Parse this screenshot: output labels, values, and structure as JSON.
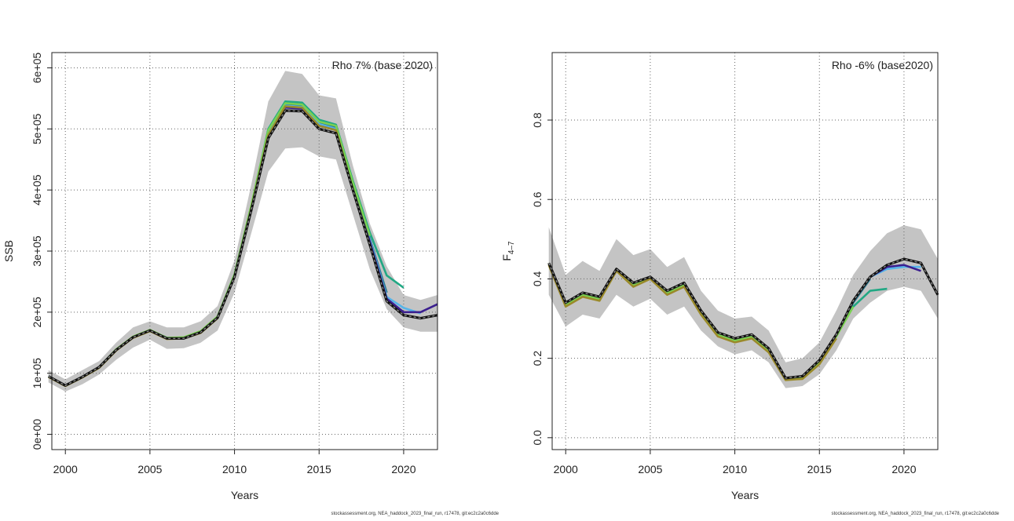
{
  "chart_data": [
    {
      "type": "line",
      "xlabel": "Years",
      "ylabel": "SSB",
      "retro_label": "Rho 7% (base 2020)",
      "footer": "stockassessment.org, NEA_haddock_2023_final_run, r17478, git:ec2c2a0c6dde",
      "xlim": [
        1999.2,
        2022
      ],
      "ylim": [
        -25000,
        625000
      ],
      "x_ticks": [
        2000,
        2005,
        2010,
        2015,
        2020
      ],
      "x_tick_labels": [
        "2000",
        "2005",
        "2010",
        "2015",
        "2020"
      ],
      "y_ticks": [
        0,
        100000,
        200000,
        300000,
        400000,
        500000,
        600000
      ],
      "y_tick_labels": [
        "0e+00",
        "1e+05",
        "2e+05",
        "3e+05",
        "4e+05",
        "5e+05",
        "6e+05"
      ],
      "grid": true,
      "band": {
        "x": [
          1999,
          2000,
          2001,
          2002,
          2003,
          2004,
          2005,
          2006,
          2007,
          2008,
          2009,
          2010,
          2011,
          2012,
          2013,
          2014,
          2015,
          2016,
          2017,
          2018,
          2019,
          2020,
          2021,
          2022
        ],
        "lower": [
          85000,
          70000,
          82000,
          98000,
          122000,
          142000,
          155000,
          140000,
          141000,
          150000,
          170000,
          232000,
          330000,
          430000,
          468000,
          470000,
          455000,
          450000,
          360000,
          270000,
          205000,
          175000,
          168000,
          168000
        ],
        "upper": [
          105000,
          90000,
          105000,
          120000,
          150000,
          175000,
          185000,
          175000,
          175000,
          185000,
          210000,
          285000,
          410000,
          545000,
          595000,
          590000,
          555000,
          550000,
          440000,
          345000,
          275000,
          228000,
          220000,
          228000
        ]
      },
      "series": [
        {
          "color": "#22a884",
          "x": [
            1999,
            2000,
            2001,
            2002,
            2003,
            2004,
            2005,
            2006,
            2007,
            2008,
            2009,
            2010,
            2011,
            2012,
            2013,
            2014,
            2015,
            2016,
            2017,
            2018,
            2019,
            2020
          ],
          "y": [
            95000,
            80000,
            94000,
            110000,
            138000,
            159000,
            170000,
            158000,
            158000,
            168000,
            192000,
            262000,
            375000,
            500000,
            545000,
            543000,
            515000,
            507000,
            415000,
            330000,
            260000,
            240000
          ]
        },
        {
          "color": "#2a788e",
          "x": [
            1999,
            2000,
            2001,
            2002,
            2003,
            2004,
            2005,
            2006,
            2007,
            2008,
            2009,
            2010,
            2011,
            2012,
            2013,
            2014,
            2015,
            2016,
            2017,
            2018,
            2019
          ],
          "y": [
            95000,
            80000,
            94000,
            110000,
            138000,
            159000,
            170000,
            157000,
            157000,
            167000,
            191000,
            260000,
            372000,
            495000,
            540000,
            538000,
            510000,
            502000,
            410000,
            320000,
            232000
          ]
        },
        {
          "color": "#56b4e9",
          "x": [
            1999,
            2000,
            2001,
            2002,
            2003,
            2004,
            2005,
            2006,
            2007,
            2008,
            2009,
            2010,
            2011,
            2012,
            2013,
            2014,
            2015,
            2016,
            2017,
            2018,
            2019,
            2020,
            2021
          ],
          "y": [
            95000,
            80000,
            94000,
            110000,
            138000,
            159000,
            170000,
            157000,
            157000,
            167000,
            191000,
            260000,
            372000,
            492000,
            538000,
            536000,
            508000,
            500000,
            407000,
            318000,
            225000,
            207000,
            198000
          ]
        },
        {
          "color": "#3b1f8f",
          "x": [
            1999,
            2000,
            2001,
            2002,
            2003,
            2004,
            2005,
            2006,
            2007,
            2008,
            2009,
            2010,
            2011,
            2012,
            2013,
            2014,
            2015,
            2016,
            2017,
            2018,
            2019,
            2020,
            2021,
            2022
          ],
          "y": [
            95000,
            80000,
            94000,
            110000,
            138000,
            159000,
            170000,
            157000,
            157000,
            167000,
            191000,
            260000,
            371000,
            490000,
            535000,
            533000,
            505000,
            498000,
            405000,
            315000,
            222000,
            200000,
            200000,
            213000
          ]
        },
        {
          "color": "#7ad151",
          "x": [
            1999,
            2000,
            2001,
            2002,
            2003,
            2004,
            2005,
            2006,
            2007,
            2008,
            2009,
            2010,
            2011,
            2012,
            2013,
            2014,
            2015,
            2016,
            2017,
            2018
          ],
          "y": [
            95000,
            80000,
            94000,
            110000,
            139000,
            160000,
            171000,
            158000,
            159000,
            169000,
            193000,
            262000,
            376000,
            498000,
            542000,
            540000,
            512000,
            505000,
            412000,
            325000
          ]
        },
        {
          "color": "#9a8a2a",
          "x": [
            1999,
            2000,
            2001,
            2002,
            2003,
            2004,
            2005,
            2006,
            2007,
            2008,
            2009,
            2010,
            2011,
            2012,
            2013,
            2014,
            2015,
            2016,
            2017
          ],
          "y": [
            94000,
            79000,
            93000,
            109000,
            137000,
            158000,
            169000,
            156000,
            157000,
            166000,
            190000,
            258000,
            370000,
            490000,
            537000,
            535000,
            505000,
            498000,
            400000
          ]
        },
        {
          "color": "#111111",
          "dashed": true,
          "x": [
            1999,
            2000,
            2001,
            2002,
            2003,
            2004,
            2005,
            2006,
            2007,
            2008,
            2009,
            2010,
            2011,
            2012,
            2013,
            2014,
            2015,
            2016,
            2017,
            2018,
            2019,
            2020,
            2021,
            2022
          ],
          "y": [
            95000,
            80000,
            94000,
            110000,
            138000,
            159000,
            170000,
            157000,
            157000,
            167000,
            191000,
            258000,
            368000,
            485000,
            530000,
            529000,
            500000,
            493000,
            400000,
            310000,
            218000,
            195000,
            190000,
            195000
          ]
        }
      ]
    },
    {
      "type": "line",
      "xlabel": "Years",
      "ylabel": "F",
      "ylabel_sub": "4–7",
      "retro_label": "Rho -6% (base2020)",
      "footer": "stockassessment.org, NEA_haddock_2023_final_run, r17478, git:ec2c2a0c6dde",
      "xlim": [
        1999.2,
        2022
      ],
      "ylim": [
        -0.03,
        0.97
      ],
      "x_ticks": [
        2000,
        2005,
        2010,
        2015,
        2020
      ],
      "x_tick_labels": [
        "2000",
        "2005",
        "2010",
        "2015",
        "2020"
      ],
      "y_ticks": [
        0.0,
        0.2,
        0.4,
        0.6,
        0.8
      ],
      "y_tick_labels": [
        "0.0",
        "0.2",
        "0.4",
        "0.6",
        "0.8"
      ],
      "grid": true,
      "band": {
        "x": [
          1999,
          2000,
          2001,
          2002,
          2003,
          2004,
          2005,
          2006,
          2007,
          2008,
          2009,
          2010,
          2011,
          2012,
          2013,
          2014,
          2015,
          2016,
          2017,
          2018,
          2019,
          2020,
          2021,
          2022
        ],
        "lower": [
          0.36,
          0.28,
          0.31,
          0.3,
          0.36,
          0.33,
          0.35,
          0.31,
          0.33,
          0.27,
          0.23,
          0.21,
          0.22,
          0.19,
          0.125,
          0.13,
          0.16,
          0.22,
          0.3,
          0.34,
          0.37,
          0.38,
          0.37,
          0.3
        ],
        "upper": [
          0.53,
          0.41,
          0.445,
          0.42,
          0.5,
          0.46,
          0.475,
          0.43,
          0.455,
          0.37,
          0.32,
          0.3,
          0.305,
          0.27,
          0.19,
          0.2,
          0.24,
          0.32,
          0.41,
          0.47,
          0.515,
          0.535,
          0.525,
          0.45
        ]
      },
      "series": [
        {
          "color": "#22a884",
          "x": [
            2016,
            2017,
            2018,
            2019
          ],
          "y": [
            0.26,
            0.33,
            0.37,
            0.375
          ]
        },
        {
          "color": "#2a788e",
          "x": [
            2016,
            2017,
            2018
          ],
          "y": [
            0.26,
            0.34,
            0.4
          ]
        },
        {
          "color": "#56b4e9",
          "x": [
            2016,
            2017,
            2018,
            2019,
            2020,
            2021
          ],
          "y": [
            0.26,
            0.345,
            0.405,
            0.425,
            0.43,
            0.43
          ]
        },
        {
          "color": "#3b1f8f",
          "x": [
            2016,
            2017,
            2018,
            2019,
            2020,
            2021
          ],
          "y": [
            0.26,
            0.345,
            0.405,
            0.43,
            0.435,
            0.42
          ]
        },
        {
          "color": "#7ad151",
          "x": [
            1999,
            2000,
            2001,
            2002,
            2003,
            2004,
            2005,
            2006,
            2007,
            2008,
            2009,
            2010,
            2011,
            2012,
            2013,
            2014,
            2015,
            2016,
            2017
          ],
          "y": [
            0.44,
            0.335,
            0.36,
            0.35,
            0.425,
            0.385,
            0.405,
            0.365,
            0.385,
            0.315,
            0.26,
            0.245,
            0.255,
            0.22,
            0.148,
            0.152,
            0.19,
            0.255,
            0.33
          ]
        },
        {
          "color": "#9a8a2a",
          "x": [
            1999,
            2000,
            2001,
            2002,
            2003,
            2004,
            2005,
            2006,
            2007,
            2008,
            2009,
            2010,
            2011,
            2012,
            2013,
            2014,
            2015,
            2016
          ],
          "y": [
            0.435,
            0.33,
            0.355,
            0.345,
            0.42,
            0.38,
            0.4,
            0.36,
            0.38,
            0.31,
            0.255,
            0.24,
            0.25,
            0.215,
            0.145,
            0.148,
            0.185,
            0.25
          ]
        },
        {
          "color": "#111111",
          "dashed": true,
          "x": [
            1999,
            2000,
            2001,
            2002,
            2003,
            2004,
            2005,
            2006,
            2007,
            2008,
            2009,
            2010,
            2011,
            2012,
            2013,
            2014,
            2015,
            2016,
            2017,
            2018,
            2019,
            2020,
            2021,
            2022
          ],
          "y": [
            0.44,
            0.34,
            0.365,
            0.355,
            0.425,
            0.39,
            0.405,
            0.37,
            0.39,
            0.32,
            0.265,
            0.25,
            0.26,
            0.225,
            0.15,
            0.155,
            0.195,
            0.26,
            0.345,
            0.405,
            0.435,
            0.45,
            0.44,
            0.36
          ]
        }
      ]
    }
  ]
}
